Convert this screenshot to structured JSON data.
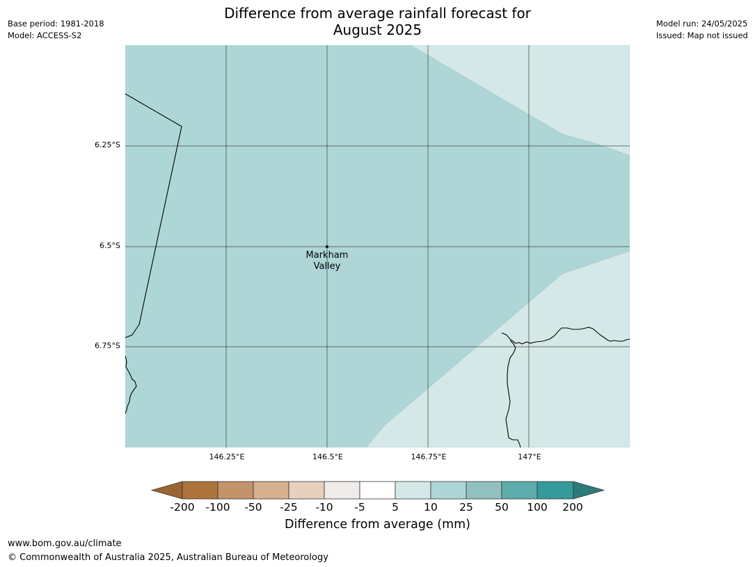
{
  "header": {
    "title_line1": "Difference from average rainfall forecast for",
    "title_line2": "August 2025",
    "base_period": "Base period: 1981-2018",
    "model": "Model: ACCESS-S2",
    "model_run": "Model run: 24/05/2025",
    "issued": "Issued: Map not issued"
  },
  "map": {
    "lat_labels": [
      "6.25°S",
      "6.5°S",
      "6.75°S"
    ],
    "lon_labels": [
      "146.25°E",
      "146.5°E",
      "146.75°E",
      "147°E"
    ],
    "place": {
      "line1": "Markham",
      "line2": "Valley"
    },
    "region_colors": {
      "10_to_25": "#aed6d6",
      "5_to_10": "#d5e8e8"
    }
  },
  "colorbar": {
    "title": "Difference from average (mm)",
    "tick_labels": [
      "-200",
      "-100",
      "-50",
      "-25",
      "-10",
      "-5",
      "5",
      "10",
      "25",
      "50",
      "100",
      "200"
    ],
    "colors": [
      "#9b6433",
      "#ad743c",
      "#c3936a",
      "#d6b190",
      "#e6d0be",
      "#efebe8",
      "#ffffff",
      "#d5e8e8",
      "#aed6d6",
      "#92c0c0",
      "#5dadad",
      "#349a9a",
      "#2d7a7a"
    ]
  },
  "footer": {
    "url": "www.bom.gov.au/climate",
    "copyright": "© Commonwealth of Australia 2025, Australian Bureau of Meteorology"
  }
}
